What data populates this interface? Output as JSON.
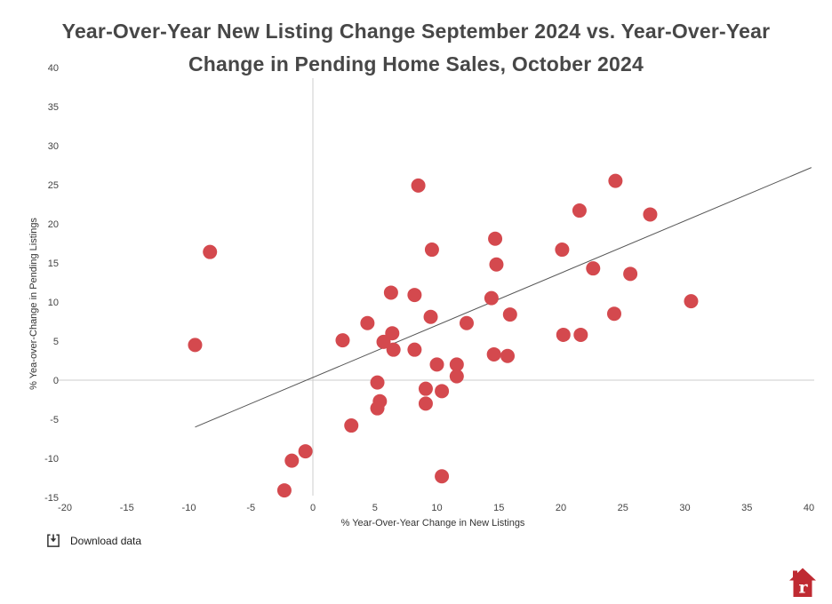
{
  "title": {
    "line1": "Year-Over-Year New Listing Change September 2024 vs. Year-Over-Year",
    "line2": "Change in Pending Home Sales, October 2024"
  },
  "chart_data": {
    "type": "scatter",
    "title": "Year-Over-Year New Listing Change September 2024 vs. Year-Over-Year Change in Pending Home Sales, October 2024",
    "xlabel": "% Year-Over-Year Change in New Listings",
    "ylabel": "% Yea-over-Change in Pending Listings",
    "xlim": [
      -20,
      40
    ],
    "ylim": [
      -15,
      40
    ],
    "x_ticks": [
      -20,
      -15,
      -10,
      -5,
      0,
      5,
      10,
      15,
      20,
      25,
      30,
      35,
      40
    ],
    "y_ticks": [
      -15,
      -10,
      -5,
      0,
      5,
      10,
      15,
      20,
      25,
      30,
      35,
      40
    ],
    "grid": "zero-lines-only",
    "legend": "none",
    "point_color": "#d4494e",
    "points": [
      [
        -9.5,
        4.5
      ],
      [
        -8.3,
        16.4
      ],
      [
        -2.3,
        -14.1
      ],
      [
        -1.7,
        -10.3
      ],
      [
        -0.6,
        -9.1
      ],
      [
        2.4,
        5.1
      ],
      [
        3.1,
        -5.8
      ],
      [
        4.4,
        7.3
      ],
      [
        5.2,
        -0.3
      ],
      [
        5.4,
        -2.7
      ],
      [
        5.2,
        -3.6
      ],
      [
        5.7,
        4.9
      ],
      [
        6.3,
        11.2
      ],
      [
        6.4,
        6.0
      ],
      [
        6.5,
        3.9
      ],
      [
        8.2,
        10.9
      ],
      [
        8.2,
        3.9
      ],
      [
        8.5,
        24.9
      ],
      [
        9.1,
        -1.1
      ],
      [
        9.1,
        -3.0
      ],
      [
        9.5,
        8.1
      ],
      [
        9.6,
        16.7
      ],
      [
        10.0,
        2.0
      ],
      [
        10.4,
        -1.4
      ],
      [
        10.4,
        -12.3
      ],
      [
        11.6,
        2.0
      ],
      [
        11.6,
        0.5
      ],
      [
        12.4,
        7.3
      ],
      [
        14.4,
        10.5
      ],
      [
        14.6,
        3.3
      ],
      [
        14.7,
        18.1
      ],
      [
        14.8,
        14.8
      ],
      [
        15.7,
        3.1
      ],
      [
        15.9,
        8.4
      ],
      [
        20.1,
        16.7
      ],
      [
        20.2,
        5.8
      ],
      [
        21.6,
        5.8
      ],
      [
        21.5,
        21.7
      ],
      [
        22.6,
        14.3
      ],
      [
        24.3,
        8.5
      ],
      [
        24.4,
        25.5
      ],
      [
        25.6,
        13.6
      ],
      [
        27.2,
        21.2
      ],
      [
        30.5,
        10.1
      ]
    ],
    "trendline": {
      "x1": -9.5,
      "y1": -6.0,
      "x2": 40.2,
      "y2": 27.2
    }
  },
  "colors": {
    "point": "#d4494e",
    "trendline": "#555555",
    "gridline": "#cccccc",
    "tick_text": "#444444",
    "axis_text": "#333333",
    "title_text": "#474747",
    "logo_red": "#bf2a32"
  },
  "footer": {
    "download_label": "Download data"
  },
  "branding": {
    "logo": "redfin-house-logo"
  }
}
